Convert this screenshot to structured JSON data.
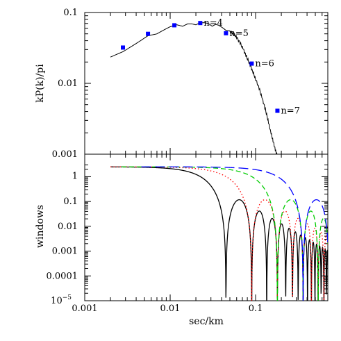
{
  "chart_data": [
    {
      "type": "line",
      "xlabel": "",
      "ylabel": "kP(k)/pi",
      "xscale": "log",
      "yscale": "log",
      "xlim": [
        0.001,
        0.7
      ],
      "ylim": [
        0.001,
        0.1
      ],
      "yticks": [
        {
          "value": 0.1,
          "label": "0.1"
        },
        {
          "value": 0.01,
          "label": "0.01"
        },
        {
          "value": 0.001,
          "label": "0.001"
        }
      ],
      "series": [
        {
          "kind": "line",
          "color": "#000000",
          "x": [
            0.002,
            0.0028,
            0.0035,
            0.0045,
            0.0055,
            0.007,
            0.0085,
            0.01,
            0.012,
            0.014,
            0.016,
            0.018,
            0.02,
            0.022,
            0.025,
            0.028,
            0.031,
            0.034,
            0.037,
            0.041,
            0.045,
            0.05,
            0.055,
            0.06,
            0.066,
            0.072,
            0.078,
            0.085,
            0.092,
            0.1,
            0.11,
            0.12,
            0.13,
            0.14,
            0.15,
            0.16,
            0.17,
            0.18
          ],
          "y": [
            0.0235,
            0.028,
            0.033,
            0.04,
            0.047,
            0.05,
            0.057,
            0.063,
            0.067,
            0.064,
            0.069,
            0.069,
            0.067,
            0.071,
            0.072,
            0.07,
            0.064,
            0.068,
            0.066,
            0.061,
            0.056,
            0.055,
            0.05,
            0.045,
            0.037,
            0.03,
            0.024,
            0.019,
            0.015,
            0.0115,
            0.0085,
            0.006,
            0.0043,
            0.003,
            0.0021,
            0.00155,
            0.00115,
            0.00095
          ]
        },
        {
          "kind": "points",
          "color": "#0000ff",
          "points": [
            {
              "x": 0.0028,
              "y": 0.032,
              "label": ""
            },
            {
              "x": 0.0055,
              "y": 0.05,
              "label": ""
            },
            {
              "x": 0.0112,
              "y": 0.066,
              "label": ""
            },
            {
              "x": 0.0225,
              "y": 0.071,
              "label": "n=4"
            },
            {
              "x": 0.045,
              "y": 0.051,
              "label": "n=5"
            },
            {
              "x": 0.09,
              "y": 0.019,
              "label": "n=6"
            },
            {
              "x": 0.18,
              "y": 0.0041,
              "label": "n=7"
            }
          ]
        }
      ]
    },
    {
      "type": "line",
      "xlabel": "sec/km",
      "ylabel": "windows",
      "xscale": "log",
      "yscale": "log",
      "xlim": [
        0.001,
        0.7
      ],
      "ylim": [
        1e-05,
        3.5
      ],
      "xticks": [
        {
          "value": 0.001,
          "label": "0.001"
        },
        {
          "value": 0.01,
          "label": "0.01"
        },
        {
          "value": 0.1,
          "label": "0.1"
        }
      ],
      "yticks": [
        {
          "value": 1,
          "label": "1"
        },
        {
          "value": 0.1,
          "label": "0.1"
        },
        {
          "value": 0.01,
          "label": "0.01"
        },
        {
          "value": 0.001,
          "label": "0.001"
        },
        {
          "value": 0.0001,
          "label": "0.0001"
        },
        {
          "value": 1e-05,
          "label": "10",
          "sup": "−5"
        }
      ],
      "windows": [
        {
          "color": "#000000",
          "dash": "",
          "center": 0.0225,
          "xmin": 0.002
        },
        {
          "color": "#ff0000",
          "dash": "1.5,3",
          "center": 0.045,
          "xmin": 0.002
        },
        {
          "color": "#00cc00",
          "dash": "7,4",
          "center": 0.09,
          "xmin": 0.0027
        },
        {
          "color": "#0000ff",
          "dash": "14,6",
          "center": 0.18,
          "xmin": 0.0046
        }
      ]
    }
  ]
}
